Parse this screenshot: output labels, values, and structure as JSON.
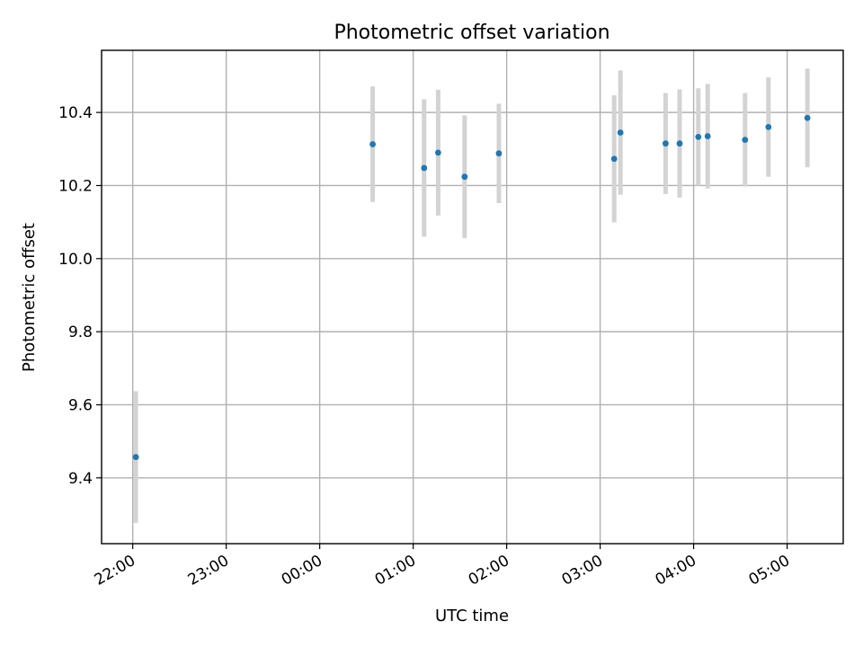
{
  "chart_data": {
    "type": "scatter",
    "title": "Photometric offset variation",
    "xlabel": "UTC time",
    "ylabel": "Photometric offset",
    "x_tick_labels": [
      "22:00",
      "23:00",
      "00:00",
      "01:00",
      "02:00",
      "03:00",
      "04:00",
      "05:00"
    ],
    "x_tick_times": [
      "2000-01-01T22:00",
      "2000-01-01T23:00",
      "2000-01-02T00:00",
      "2000-01-02T01:00",
      "2000-01-02T02:00",
      "2000-01-02T03:00",
      "2000-01-02T04:00",
      "2000-01-02T05:00"
    ],
    "xlim": [
      "2000-01-01T21:40",
      "2000-01-02T05:36"
    ],
    "y_ticks": [
      9.4,
      9.6,
      9.8,
      10.0,
      10.2,
      10.4
    ],
    "ylim": [
      9.22,
      10.57
    ],
    "grid": true,
    "point_color": "#1f77b4",
    "errorbar_color": "#d3d3d3",
    "points": [
      {
        "time": "2000-01-01T22:02",
        "y": 9.457,
        "err": 0.18
      },
      {
        "time": "2000-01-02T00:34",
        "y": 10.313,
        "err": 0.158
      },
      {
        "time": "2000-01-02T01:07",
        "y": 10.248,
        "err": 0.188
      },
      {
        "time": "2000-01-02T01:16",
        "y": 10.29,
        "err": 0.172
      },
      {
        "time": "2000-01-02T01:33",
        "y": 10.224,
        "err": 0.168
      },
      {
        "time": "2000-01-02T01:55",
        "y": 10.288,
        "err": 0.136
      },
      {
        "time": "2000-01-02T03:09",
        "y": 10.273,
        "err": 0.174
      },
      {
        "time": "2000-01-02T03:13",
        "y": 10.345,
        "err": 0.17
      },
      {
        "time": "2000-01-02T03:42",
        "y": 10.315,
        "err": 0.138
      },
      {
        "time": "2000-01-02T03:51",
        "y": 10.315,
        "err": 0.148
      },
      {
        "time": "2000-01-02T04:03",
        "y": 10.333,
        "err": 0.133
      },
      {
        "time": "2000-01-02T04:09",
        "y": 10.335,
        "err": 0.143
      },
      {
        "time": "2000-01-02T04:33",
        "y": 10.325,
        "err": 0.128
      },
      {
        "time": "2000-01-02T04:48",
        "y": 10.36,
        "err": 0.136
      },
      {
        "time": "2000-01-02T05:13",
        "y": 10.385,
        "err": 0.135
      }
    ]
  }
}
